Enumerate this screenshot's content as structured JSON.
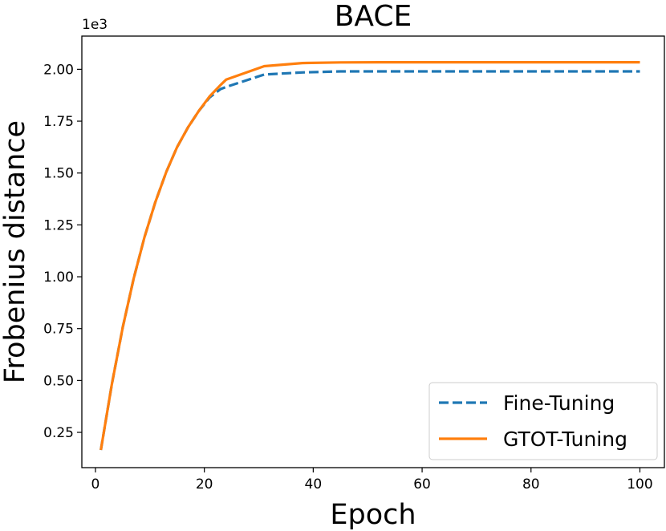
{
  "chart_data": {
    "type": "line",
    "title": "BACE",
    "xlabel": "Epoch",
    "ylabel": "Frobenius distance",
    "y_offset_label": "1e3",
    "xlim": [
      -2.5,
      104.5
    ],
    "ylim": [
      0.08,
      2.16
    ],
    "x_ticks": [
      0,
      20,
      40,
      60,
      80,
      100
    ],
    "y_ticks": [
      0.25,
      0.5,
      0.75,
      1.0,
      1.25,
      1.5,
      1.75,
      2.0
    ],
    "y_tick_labels": [
      "0.25",
      "0.50",
      "0.75",
      "1.00",
      "1.25",
      "1.50",
      "1.75",
      "2.00"
    ],
    "grid": false,
    "legend_position": "lower-right",
    "series": [
      {
        "name": "Fine-Tuning",
        "color": "#1f77b4",
        "style": "dashed",
        "x": [
          1,
          3,
          5,
          7,
          9,
          11,
          13,
          15,
          17,
          19,
          21,
          23,
          24,
          31,
          38,
          45,
          52,
          60,
          70,
          80,
          90,
          100
        ],
        "y": [
          0.165,
          0.48,
          0.755,
          0.99,
          1.19,
          1.36,
          1.505,
          1.625,
          1.72,
          1.8,
          1.865,
          1.905,
          1.915,
          1.975,
          1.985,
          1.99,
          1.99,
          1.99,
          1.99,
          1.99,
          1.99,
          1.99
        ]
      },
      {
        "name": "GTOT-Tuning",
        "color": "#ff7f0e",
        "style": "solid",
        "x": [
          1,
          3,
          5,
          7,
          9,
          11,
          13,
          15,
          17,
          19,
          21,
          23,
          24,
          31,
          38,
          45,
          52,
          60,
          70,
          80,
          90,
          100
        ],
        "y": [
          0.165,
          0.48,
          0.755,
          0.99,
          1.19,
          1.36,
          1.505,
          1.625,
          1.72,
          1.8,
          1.87,
          1.925,
          1.95,
          2.015,
          2.03,
          2.033,
          2.034,
          2.034,
          2.034,
          2.034,
          2.034,
          2.034
        ]
      }
    ]
  }
}
